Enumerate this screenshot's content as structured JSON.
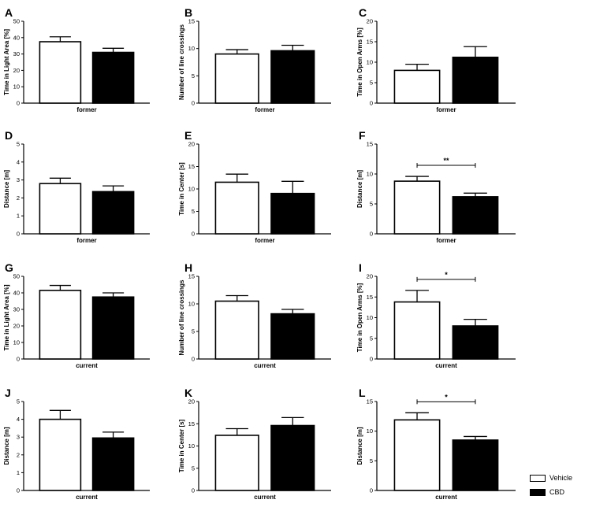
{
  "colors": {
    "vehicle": "#ffffff",
    "cbd": "#000000",
    "axis": "#000000"
  },
  "legend": {
    "vehicle": "Vehicle",
    "cbd": "CBD"
  },
  "chart_data": [
    {
      "letter": "A",
      "type": "bar",
      "ylabel": "Time in Light Area [%]",
      "xlabel": "former",
      "ylim": [
        0,
        50
      ],
      "yticks": [
        0,
        10,
        20,
        30,
        40,
        50
      ],
      "series": [
        {
          "name": "Vehicle",
          "values": [
            37.5
          ],
          "errors": [
            3
          ]
        },
        {
          "name": "CBD",
          "values": [
            31
          ],
          "errors": [
            2.5
          ]
        }
      ],
      "significance": null
    },
    {
      "letter": "B",
      "type": "bar",
      "ylabel": "Number of line crossings",
      "xlabel": "former",
      "ylim": [
        0,
        15
      ],
      "yticks": [
        0,
        5,
        10,
        15
      ],
      "series": [
        {
          "name": "Vehicle",
          "values": [
            9
          ],
          "errors": [
            0.8
          ]
        },
        {
          "name": "CBD",
          "values": [
            9.6
          ],
          "errors": [
            1
          ]
        }
      ],
      "significance": null
    },
    {
      "letter": "C",
      "type": "bar",
      "ylabel": "Time in Open Arms [%]",
      "xlabel": "former",
      "ylim": [
        0,
        20
      ],
      "yticks": [
        0,
        5,
        10,
        15,
        20
      ],
      "series": [
        {
          "name": "Vehicle",
          "values": [
            8
          ],
          "errors": [
            1.5
          ]
        },
        {
          "name": "CBD",
          "values": [
            11.2
          ],
          "errors": [
            2.6
          ]
        }
      ],
      "significance": null
    },
    {
      "letter": "D",
      "type": "bar",
      "ylabel": "Distance [m]",
      "xlabel": "former",
      "ylim": [
        0,
        5
      ],
      "yticks": [
        0,
        1,
        2,
        3,
        4,
        5
      ],
      "series": [
        {
          "name": "Vehicle",
          "values": [
            2.8
          ],
          "errors": [
            0.3
          ]
        },
        {
          "name": "CBD",
          "values": [
            2.35
          ],
          "errors": [
            0.32
          ]
        }
      ],
      "significance": null
    },
    {
      "letter": "E",
      "type": "bar",
      "ylabel": "Time in Center [s]",
      "xlabel": "former",
      "ylim": [
        0,
        20
      ],
      "yticks": [
        0,
        5,
        10,
        15,
        20
      ],
      "series": [
        {
          "name": "Vehicle",
          "values": [
            11.5
          ],
          "errors": [
            1.8
          ]
        },
        {
          "name": "CBD",
          "values": [
            9
          ],
          "errors": [
            2.7
          ]
        }
      ],
      "significance": null
    },
    {
      "letter": "F",
      "type": "bar",
      "ylabel": "Distance [m]",
      "xlabel": "former",
      "ylim": [
        0,
        15
      ],
      "yticks": [
        0,
        5,
        10,
        15
      ],
      "series": [
        {
          "name": "Vehicle",
          "values": [
            8.8
          ],
          "errors": [
            0.8
          ]
        },
        {
          "name": "CBD",
          "values": [
            6.2
          ],
          "errors": [
            0.6
          ]
        }
      ],
      "significance": "**"
    },
    {
      "letter": "G",
      "type": "bar",
      "ylabel": "Time in Light Area [%]",
      "xlabel": "current",
      "ylim": [
        0,
        50
      ],
      "yticks": [
        0,
        10,
        20,
        30,
        40,
        50
      ],
      "series": [
        {
          "name": "Vehicle",
          "values": [
            41.5
          ],
          "errors": [
            3
          ]
        },
        {
          "name": "CBD",
          "values": [
            37.5
          ],
          "errors": [
            2.5
          ]
        }
      ],
      "significance": null
    },
    {
      "letter": "H",
      "type": "bar",
      "ylabel": "Number of line crossings",
      "xlabel": "current",
      "ylim": [
        0,
        15
      ],
      "yticks": [
        0,
        5,
        10,
        15
      ],
      "series": [
        {
          "name": "Vehicle",
          "values": [
            10.5
          ],
          "errors": [
            1
          ]
        },
        {
          "name": "CBD",
          "values": [
            8.2
          ],
          "errors": [
            0.8
          ]
        }
      ],
      "significance": null
    },
    {
      "letter": "I",
      "type": "bar",
      "ylabel": "Time in Open Arms [%]",
      "xlabel": "current",
      "ylim": [
        0,
        20
      ],
      "yticks": [
        0,
        5,
        10,
        15,
        20
      ],
      "series": [
        {
          "name": "Vehicle",
          "values": [
            13.8
          ],
          "errors": [
            2.8
          ]
        },
        {
          "name": "CBD",
          "values": [
            8
          ],
          "errors": [
            1.6
          ]
        }
      ],
      "significance": "*"
    },
    {
      "letter": "J",
      "type": "bar",
      "ylabel": "Distance [m]",
      "xlabel": "current",
      "ylim": [
        0,
        5
      ],
      "yticks": [
        0,
        1,
        2,
        3,
        4,
        5
      ],
      "series": [
        {
          "name": "Vehicle",
          "values": [
            4
          ],
          "errors": [
            0.5
          ]
        },
        {
          "name": "CBD",
          "values": [
            2.95
          ],
          "errors": [
            0.33
          ]
        }
      ],
      "significance": null
    },
    {
      "letter": "K",
      "type": "bar",
      "ylabel": "Time in Center [s]",
      "xlabel": "current",
      "ylim": [
        0,
        20
      ],
      "yticks": [
        0,
        5,
        10,
        15,
        20
      ],
      "series": [
        {
          "name": "Vehicle",
          "values": [
            12.4
          ],
          "errors": [
            1.5
          ]
        },
        {
          "name": "CBD",
          "values": [
            14.6
          ],
          "errors": [
            1.8
          ]
        }
      ],
      "significance": null
    },
    {
      "letter": "L",
      "type": "bar",
      "ylabel": "Distance [m]",
      "xlabel": "current",
      "ylim": [
        0,
        15
      ],
      "yticks": [
        0,
        5,
        10,
        15
      ],
      "series": [
        {
          "name": "Vehicle",
          "values": [
            11.9
          ],
          "errors": [
            1.2
          ]
        },
        {
          "name": "CBD",
          "values": [
            8.5
          ],
          "errors": [
            0.6
          ]
        }
      ],
      "significance": "*"
    }
  ]
}
